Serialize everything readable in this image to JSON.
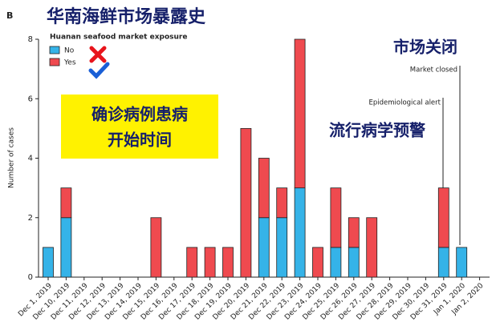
{
  "chart_data": {
    "type": "stacked-bar",
    "panel": "B",
    "title": "华南海鲜市场暴露史",
    "legend_title": "Huanan seafood market exposure",
    "ylabel": "Number of cases",
    "categories": [
      "Dec 1, 2019",
      "Dec 10, 2019",
      "Dec 11, 2019",
      "Dec 12, 2019",
      "Dec 13, 2019",
      "Dec 14, 2019",
      "Dec 15, 2019",
      "Dec 16, 2019",
      "Dec 17, 2019",
      "Dec 18, 2019",
      "Dec 19, 2019",
      "Dec 20, 2019",
      "Dec 21, 2019",
      "Dec 22, 2019",
      "Dec 23, 2019",
      "Dec 24, 2019",
      "Dec 25, 2019",
      "Dec 26, 2019",
      "Dec 27, 2019",
      "Dec 28, 2019",
      "Dec 29, 2019",
      "Dec 30, 2019",
      "Dec 31, 2019",
      "Jan 1, 2020",
      "Jan 2, 2020"
    ],
    "series": [
      {
        "name": "No",
        "color": "#35b3e8",
        "values": [
          1,
          2,
          0,
          0,
          0,
          0,
          0,
          0,
          0,
          0,
          0,
          0,
          2,
          2,
          3,
          0,
          1,
          1,
          0,
          0,
          0,
          0,
          1,
          1,
          0
        ]
      },
      {
        "name": "Yes",
        "color": "#ef4a4f",
        "values": [
          0,
          1,
          0,
          0,
          0,
          0,
          2,
          0,
          1,
          1,
          1,
          5,
          2,
          1,
          5,
          1,
          2,
          1,
          2,
          0,
          0,
          0,
          2,
          0,
          0
        ]
      }
    ],
    "ylim": [
      0,
      8
    ],
    "yticks": [
      0,
      2,
      4,
      6,
      8
    ],
    "onset_note": [
      "确诊病例患病",
      "开始时间"
    ],
    "alert_zh": "流行病学预警",
    "closed_zh": "市场关闭",
    "alert": "Epidemiological alert",
    "closed": "Market closed"
  }
}
